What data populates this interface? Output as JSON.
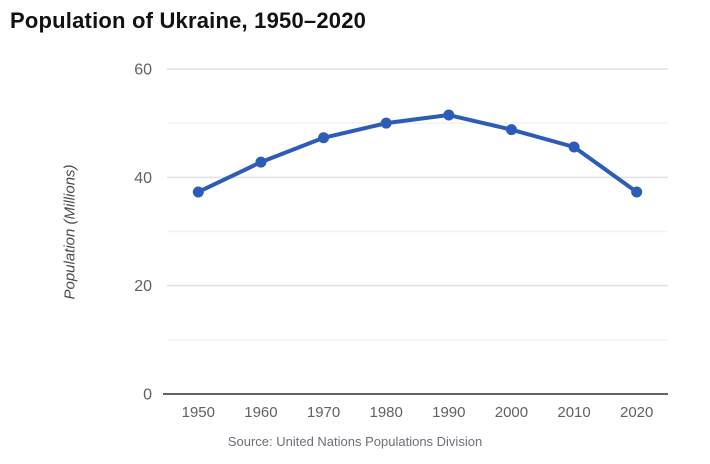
{
  "title": "Population of Ukraine, 1950–2020",
  "source": "Source: United Nations Populations Division",
  "colors": {
    "line": "#2d5cb8",
    "point": "#2d5cb8",
    "grid_major": "#e2e2e2",
    "grid_minor": "#f2f2f2",
    "axis": "#636363",
    "tick_text": "#616161",
    "title_text": "#121212",
    "y_axis_title_text": "#4a4a4a",
    "source_text": "#6e6e7a",
    "background": "#ffffff"
  },
  "chart_data": {
    "type": "line",
    "title": "Population of Ukraine, 1950–2020",
    "categories": [
      "1950",
      "1960",
      "1970",
      "1980",
      "1990",
      "2000",
      "2010",
      "2020"
    ],
    "series": [
      {
        "name": "Population of Ukraine",
        "values": [
          37.3,
          42.8,
          47.3,
          50.0,
          51.5,
          48.8,
          45.6,
          37.3
        ]
      }
    ],
    "xlabel": "",
    "ylabel": "Population (Millions)",
    "ylim": [
      0,
      60
    ],
    "yticks_labeled": [
      0,
      20,
      40,
      60
    ],
    "ygridlines": [
      10,
      20,
      30,
      40,
      50,
      60
    ],
    "grid": true,
    "legend_position": "none",
    "annotations": []
  }
}
